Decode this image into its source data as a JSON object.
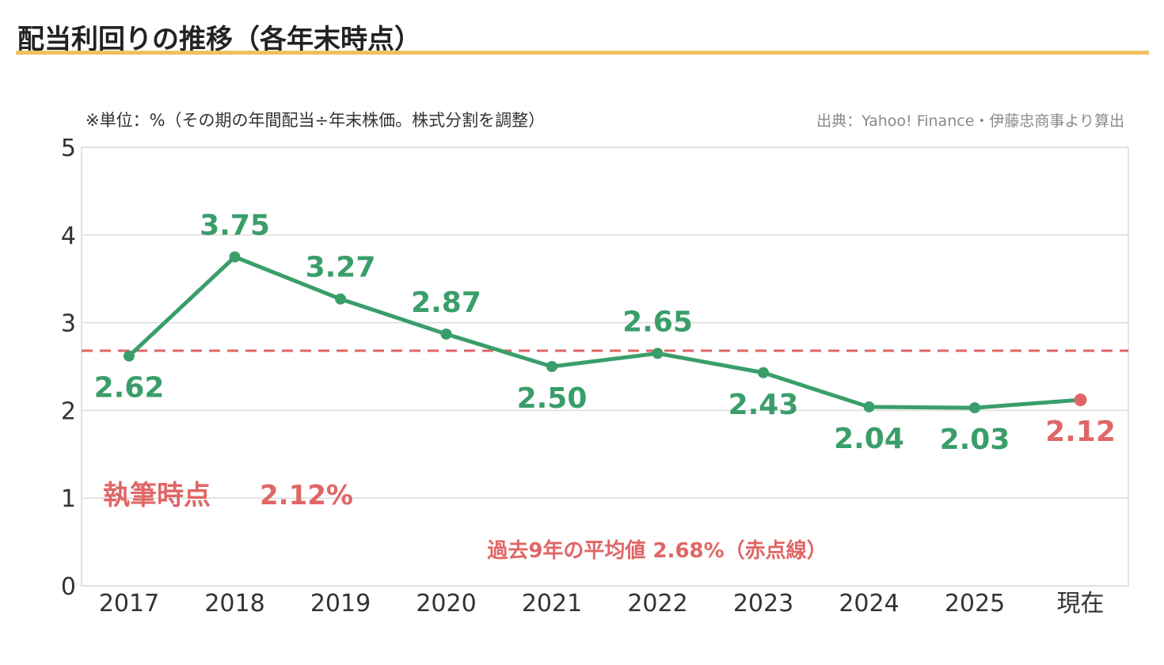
{
  "title": "配当利回りの推移（各年末時点）",
  "unit_note": "※単位：%（その期の年間配当÷年末株価。株式分割を調整）",
  "source_note": "出典：Yahoo! Finance・伊藤忠商事より算出",
  "annotations": {
    "current_label": "執筆時点",
    "current_value": "2.12%",
    "average_note": "過去9年の平均値 2.68%（赤点線）"
  },
  "colors": {
    "series": "#3a9e6a",
    "current": "#e06666",
    "average_line": "#e06666",
    "title_rule": "#f0c060"
  },
  "chart_data": {
    "type": "line",
    "categories": [
      "2017",
      "2018",
      "2019",
      "2020",
      "2021",
      "2022",
      "2023",
      "2024",
      "2025",
      "現在"
    ],
    "values": [
      2.62,
      3.75,
      3.27,
      2.87,
      2.5,
      2.65,
      2.43,
      2.04,
      2.03,
      2.12
    ],
    "value_labels": [
      "2.62",
      "3.75",
      "3.27",
      "2.87",
      "2.50",
      "2.65",
      "2.43",
      "2.04",
      "2.03",
      "2.12"
    ],
    "label_positions": [
      "below",
      "above",
      "above",
      "above",
      "below",
      "above",
      "below",
      "below",
      "below",
      "below"
    ],
    "highlight_last": true,
    "ylim": [
      0,
      5
    ],
    "yticks": [
      "0",
      "1",
      "2",
      "3",
      "4",
      "5"
    ],
    "reference_line": {
      "value": 2.68,
      "style": "dashed"
    },
    "grid": true,
    "legend": "none"
  }
}
